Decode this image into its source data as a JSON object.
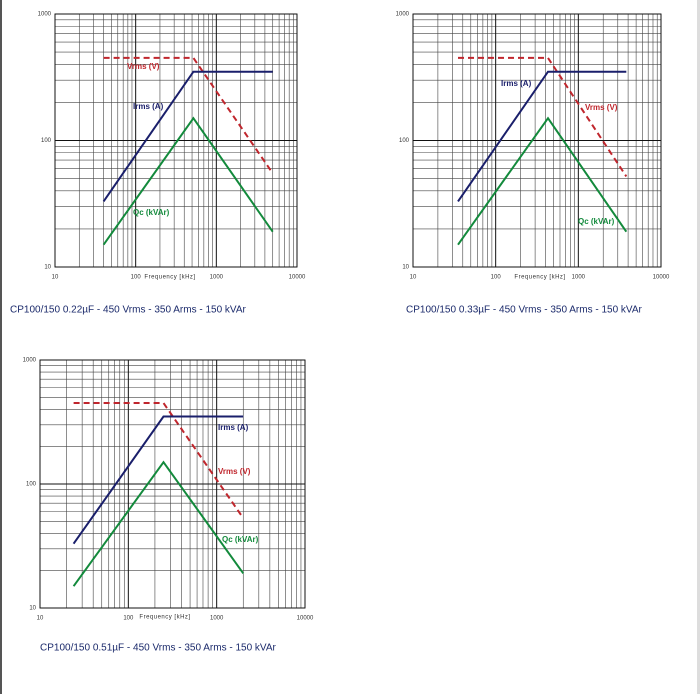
{
  "chart_data": [
    {
      "type": "line",
      "log_x": true,
      "log_y": true,
      "grid": true,
      "minor_grid": true,
      "x_label": "Frequency [kHz]",
      "caption": "CP100/150 0.22µF - 450 Vrms - 350 Arms - 150 kVAr",
      "xlim": [
        10,
        10000
      ],
      "xticks": [
        10,
        100,
        1000,
        10000
      ],
      "ylim": [
        10,
        1000
      ],
      "yticks": [
        10,
        100,
        1000
      ],
      "x": [
        40,
        520,
        5000
      ],
      "series": [
        {
          "name": "Vrms (V)",
          "color": "#c0262d",
          "dashed": true,
          "values": [
            450,
            450,
            55
          ]
        },
        {
          "name": "Irms (A)",
          "color": "#1a1f6b",
          "dashed": false,
          "values": [
            33,
            350,
            350
          ]
        },
        {
          "name": "Qc (kVAr)",
          "color": "#138a3c",
          "dashed": false,
          "values": [
            15,
            150,
            19
          ]
        }
      ]
    },
    {
      "type": "line",
      "log_x": true,
      "log_y": true,
      "grid": true,
      "minor_grid": true,
      "x_label": "Frequency [kHz]",
      "caption": "CP100/150 0.33µF - 450 Vrms - 350 Arms - 150 kVAr",
      "xlim": [
        10,
        10000
      ],
      "xticks": [
        10,
        100,
        1000,
        10000
      ],
      "ylim": [
        10,
        1000
      ],
      "yticks": [
        10,
        100,
        1000
      ],
      "x": [
        35,
        430,
        3800
      ],
      "series": [
        {
          "name": "Vrms (V)",
          "color": "#c0262d",
          "dashed": true,
          "values": [
            450,
            450,
            52
          ]
        },
        {
          "name": "Irms (A)",
          "color": "#1a1f6b",
          "dashed": false,
          "values": [
            33,
            350,
            350
          ]
        },
        {
          "name": "Qc (kVAr)",
          "color": "#138a3c",
          "dashed": false,
          "values": [
            15,
            150,
            19
          ]
        }
      ]
    },
    {
      "type": "line",
      "log_x": true,
      "log_y": true,
      "grid": true,
      "minor_grid": true,
      "x_label": "Frequency [kHz]",
      "caption": "CP100/150 0.51µF - 450 Vrms - 350 Arms - 150 kVAr",
      "xlim": [
        10,
        10000
      ],
      "xticks": [
        10,
        100,
        1000,
        10000
      ],
      "ylim": [
        10,
        1000
      ],
      "yticks": [
        10,
        100,
        1000
      ],
      "x": [
        24,
        250,
        2000
      ],
      "series": [
        {
          "name": "Vrms (V)",
          "color": "#c0262d",
          "dashed": true,
          "values": [
            450,
            450,
            53
          ]
        },
        {
          "name": "Irms (A)",
          "color": "#1a1f6b",
          "dashed": false,
          "values": [
            33,
            350,
            350
          ]
        },
        {
          "name": "Qc (kVAr)",
          "color": "#138a3c",
          "dashed": false,
          "values": [
            15,
            150,
            19
          ]
        }
      ]
    }
  ]
}
